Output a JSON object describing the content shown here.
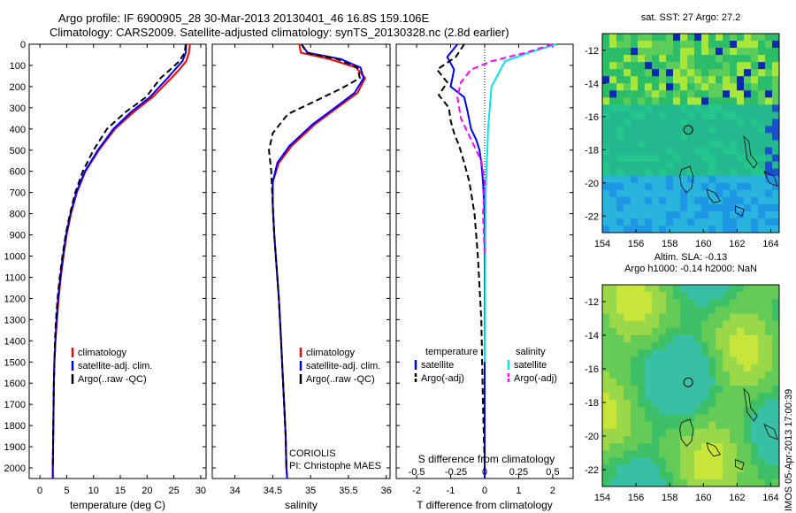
{
  "header": {
    "line1": "Argo profile: IF 6900905_28 30-Mar-2013 20130401_46 16.8S 159.106E",
    "line2": "Climatology: CARS2009. Satellite-adjusted climatology: synTS_20130328.nc (2.8d earlier)"
  },
  "side_label": "IMOS 05-Apr-2013 17:00:39",
  "panel_notes": {
    "coriolis": "CORIOLIS",
    "pi": "PI: Christophe MAES",
    "s_diff_label": "S difference from climatology"
  },
  "map_titles": {
    "sst": "sat. SST: 27 Argo: 27.2",
    "sla1": "Altim. SLA: -0.13",
    "sla2": "Argo h1000: -0.14 h2000: NaN"
  },
  "colors": {
    "climatology": "#ff0000",
    "satellite": "#0000ff",
    "argo": "#000000",
    "sal_satellite": "#00e5ee",
    "sal_argo": "#ff00ff"
  },
  "chart_data": [
    {
      "type": "line",
      "id": "temperature",
      "xlabel": "temperature (deg C)",
      "ylabel": "",
      "xlim": [
        -2,
        31
      ],
      "ylim": [
        2050,
        0
      ],
      "xticks": [
        0,
        5,
        10,
        15,
        20,
        25,
        30
      ],
      "yticks": [
        0,
        100,
        200,
        300,
        400,
        500,
        600,
        700,
        800,
        900,
        1000,
        1100,
        1200,
        1300,
        1400,
        1500,
        1600,
        1700,
        1800,
        1900,
        2000
      ],
      "legend": [
        "climatology",
        "satellite-adj. clim.",
        "Argo(..raw -QC)"
      ],
      "series": [
        {
          "name": "climatology",
          "style": "solid",
          "color": "#ff0000",
          "x": [
            28.0,
            27.8,
            27.3,
            26.0,
            24.5,
            21.0,
            17.5,
            14.0,
            11.0,
            8.5,
            6.9,
            5.8,
            5.0,
            4.4,
            3.9,
            3.5,
            3.2,
            2.9,
            2.7,
            2.6,
            2.5,
            2.4,
            2.4
          ],
          "y": [
            0,
            40,
            80,
            120,
            160,
            250,
            320,
            400,
            500,
            600,
            700,
            800,
            900,
            1000,
            1100,
            1200,
            1300,
            1400,
            1500,
            1600,
            1800,
            2000,
            2050
          ]
        },
        {
          "name": "satellite-adj. clim.",
          "style": "solid",
          "color": "#0000ff",
          "x": [
            27.3,
            27.2,
            26.6,
            25.2,
            23.8,
            20.5,
            17.0,
            13.7,
            10.8,
            8.4,
            6.8,
            5.7,
            4.9,
            4.3,
            3.8,
            3.4,
            3.1,
            2.9,
            2.7,
            2.6,
            2.5,
            2.4,
            2.4
          ],
          "y": [
            0,
            40,
            80,
            120,
            160,
            250,
            320,
            400,
            500,
            600,
            700,
            800,
            900,
            1000,
            1100,
            1200,
            1300,
            1400,
            1500,
            1600,
            1800,
            2000,
            2050
          ]
        },
        {
          "name": "Argo(..raw -QC)",
          "style": "dash",
          "color": "#000000",
          "x": [
            27.2,
            27.0,
            26.0,
            24.3,
            22.5,
            19.8,
            16.0,
            12.5,
            10.0,
            8.0,
            6.6,
            5.6,
            4.8,
            4.2,
            3.7,
            3.3,
            3.0,
            2.8,
            2.7,
            2.6,
            2.5,
            2.4
          ],
          "y": [
            0,
            40,
            80,
            120,
            160,
            250,
            320,
            400,
            500,
            600,
            700,
            800,
            900,
            1000,
            1100,
            1200,
            1300,
            1400,
            1500,
            1600,
            1800,
            2000
          ]
        }
      ]
    },
    {
      "type": "line",
      "id": "salinity",
      "xlabel": "salinity",
      "ylabel": "",
      "xlim": [
        33.7,
        36.05
      ],
      "ylim": [
        2050,
        0
      ],
      "xticks": [
        34,
        34.5,
        35,
        35.5,
        36
      ],
      "legend": [
        "climatology",
        "satellite-adj. clim.",
        "Argo(..raw -QC)"
      ],
      "series": [
        {
          "name": "climatology",
          "style": "solid",
          "color": "#ff0000",
          "x": [
            34.85,
            34.87,
            35.25,
            35.6,
            35.72,
            35.62,
            35.35,
            35.05,
            34.75,
            34.58,
            34.5,
            34.5,
            34.52,
            34.55,
            34.58,
            34.61,
            34.63,
            34.65,
            34.67,
            34.68,
            34.69
          ],
          "y": [
            0,
            40,
            70,
            110,
            160,
            230,
            300,
            380,
            480,
            560,
            650,
            760,
            900,
            1050,
            1200,
            1400,
            1550,
            1700,
            1850,
            2000,
            2050
          ]
        },
        {
          "name": "satellite-adj. clim.",
          "style": "solid",
          "color": "#0000ff",
          "x": [
            34.88,
            34.96,
            35.4,
            35.66,
            35.7,
            35.58,
            35.32,
            35.02,
            34.72,
            34.56,
            34.5,
            34.5,
            34.52,
            34.55,
            34.58,
            34.61,
            34.63,
            34.65,
            34.67,
            34.68,
            34.69
          ],
          "y": [
            0,
            40,
            70,
            110,
            160,
            230,
            300,
            380,
            480,
            560,
            650,
            760,
            900,
            1050,
            1200,
            1400,
            1550,
            1700,
            1850,
            2000,
            2050
          ]
        },
        {
          "name": "Argo(..raw -QC)",
          "style": "dash",
          "color": "#000000",
          "x": [
            34.88,
            34.95,
            35.35,
            35.62,
            35.65,
            35.4,
            35.05,
            34.7,
            34.5,
            34.45,
            34.48,
            34.5,
            34.52,
            34.55,
            34.58,
            34.61,
            34.63,
            34.65,
            34.67,
            34.68
          ],
          "y": [
            0,
            40,
            70,
            110,
            160,
            210,
            270,
            330,
            420,
            500,
            600,
            760,
            900,
            1050,
            1200,
            1400,
            1550,
            1700,
            1850,
            2000
          ]
        }
      ]
    },
    {
      "type": "line",
      "id": "differences",
      "xlabel": "T difference from climatology",
      "ylabel": "",
      "xlim": [
        -2.6,
        2.6
      ],
      "ylim": [
        2050,
        0
      ],
      "xticks": [
        -2,
        -1,
        0,
        1,
        2
      ],
      "xticks_top": [
        "-0.5",
        "-0.25",
        "0",
        "0.25",
        "0.5"
      ],
      "legend_temperature": "temperature",
      "legend_salinity": "salinity",
      "legend": [
        "satellite",
        "Argo(-adj)",
        "satellite",
        "Argo(-adj)"
      ],
      "series": [
        {
          "name": "satellite",
          "style": "solid",
          "color": "#0000ff",
          "x": [
            -0.8,
            -1.1,
            -0.9,
            -1.0,
            -0.6,
            -0.5,
            -0.4,
            -0.25,
            -0.15,
            -0.1,
            -0.05,
            0,
            0,
            0,
            0,
            0
          ],
          "y": [
            0,
            60,
            120,
            200,
            250,
            320,
            400,
            450,
            500,
            560,
            650,
            800,
            1100,
            1500,
            1800,
            2050
          ]
        },
        {
          "name": "Argo(-adj)",
          "style": "dash",
          "color": "#000000",
          "x": [
            -0.6,
            -0.85,
            -1.4,
            -1.1,
            -1.35,
            -1.05,
            -1.0,
            -0.9,
            -0.75,
            -0.6,
            -0.45,
            -0.3,
            -0.2,
            -0.1,
            -0.05,
            0
          ],
          "y": [
            0,
            60,
            120,
            180,
            240,
            300,
            360,
            420,
            480,
            560,
            650,
            800,
            1000,
            1300,
            1700,
            2000
          ]
        },
        {
          "name": "satellite",
          "style": "solid",
          "color": "#00e5ee",
          "x": [
            2.1,
            1.3,
            0.6,
            0.4,
            0.2,
            0.15,
            0.1,
            0.08,
            0.05,
            0.03,
            0.02,
            0.01,
            0
          ],
          "y": [
            0,
            40,
            80,
            140,
            200,
            300,
            400,
            500,
            600,
            700,
            900,
            1200,
            1500
          ]
        },
        {
          "name": "Argo(-adj)",
          "style": "dash",
          "color": "#ff00ff",
          "x": [
            2.0,
            1.2,
            0.2,
            -0.4,
            -0.7,
            -0.8,
            -0.7,
            -0.4,
            -0.1,
            0.0,
            -0.05,
            0
          ],
          "y": [
            0,
            40,
            80,
            120,
            180,
            250,
            350,
            450,
            550,
            650,
            800,
            1000
          ]
        }
      ]
    },
    {
      "type": "heatmap",
      "id": "sst_map",
      "title": "sat. SST: 27 Argo: 27.2",
      "xlim": [
        154,
        164.5
      ],
      "ylim": [
        -23,
        -11
      ],
      "xticks": [
        154,
        156,
        158,
        160,
        162,
        164
      ],
      "yticks": [
        -12,
        -14,
        -16,
        -18,
        -20,
        -22
      ],
      "float_position": {
        "lon": 159.1,
        "lat": -16.8
      }
    },
    {
      "type": "heatmap",
      "id": "sla_map",
      "title": "Altim. SLA: -0.13",
      "xlim": [
        154,
        164.5
      ],
      "ylim": [
        -23,
        -11
      ],
      "xticks": [
        154,
        156,
        158,
        160,
        162,
        164
      ],
      "yticks": [
        -12,
        -14,
        -16,
        -18,
        -20,
        -22
      ],
      "float_position": {
        "lon": 159.1,
        "lat": -16.8
      }
    }
  ]
}
